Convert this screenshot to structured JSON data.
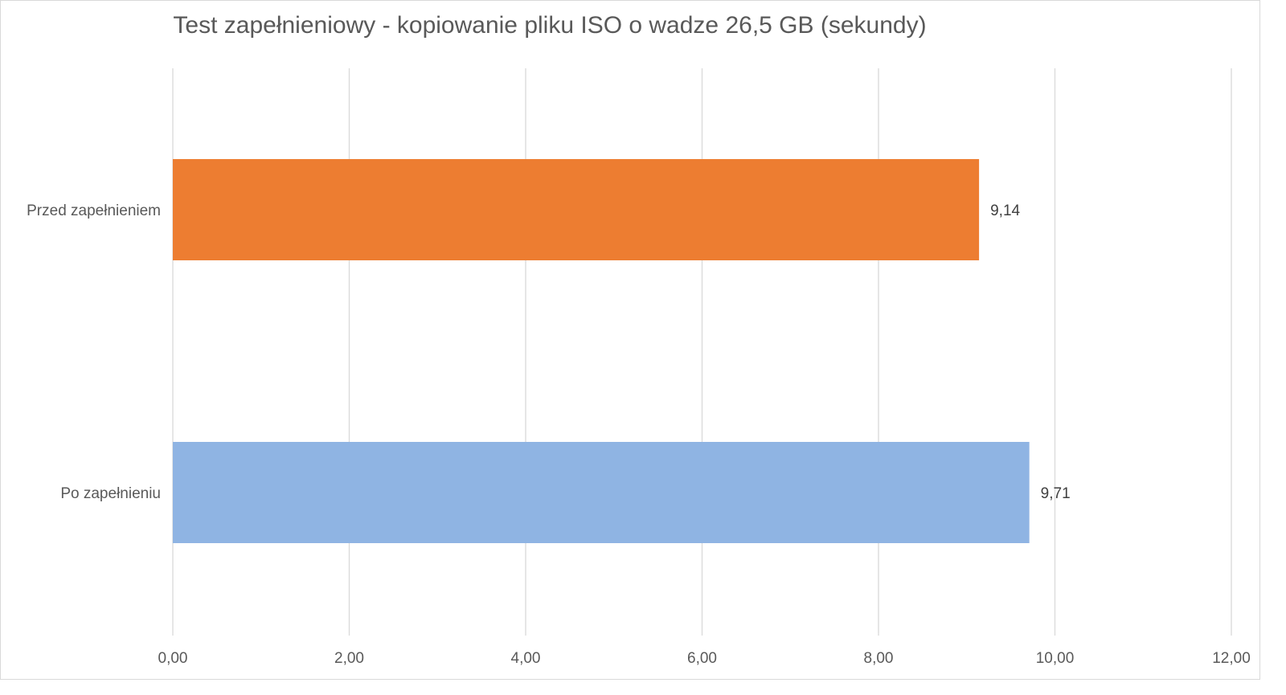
{
  "chart_data": {
    "type": "bar",
    "orientation": "horizontal",
    "title": "Test zapełnieniowy - kopiowanie pliku ISO o wadze 26,5 GB (sekundy)",
    "xlabel": "",
    "ylabel": "",
    "categories": [
      "Przed zapełnieniem",
      "Po zapełnieniu"
    ],
    "values": [
      9.14,
      9.71
    ],
    "value_labels": [
      "9,14",
      "9,71"
    ],
    "bar_colors": [
      "#ed7d31",
      "#8fb4e3"
    ],
    "xlim": [
      0,
      12
    ],
    "x_ticks": [
      0,
      2,
      4,
      6,
      8,
      10,
      12
    ],
    "x_tick_labels": [
      "0,00",
      "2,00",
      "4,00",
      "6,00",
      "8,00",
      "10,00",
      "12,00"
    ],
    "grid": true,
    "legend": "none"
  }
}
